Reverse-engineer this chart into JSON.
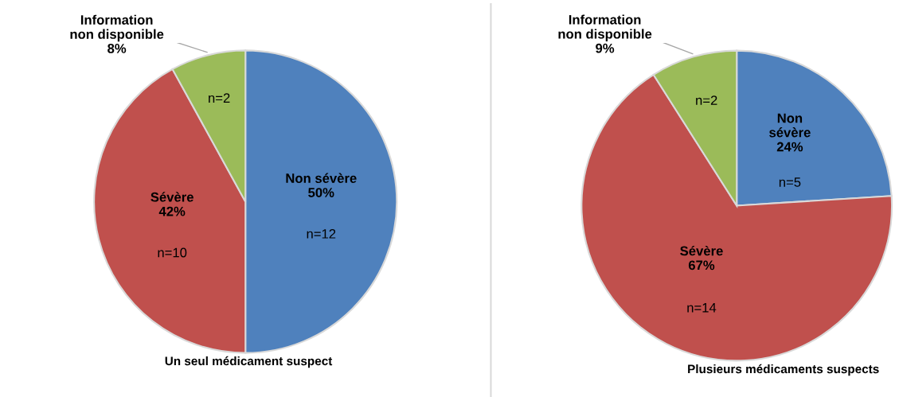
{
  "chart_data": [
    {
      "type": "pie",
      "title": "Un seul médicament suspect",
      "categories": [
        "Non sévère",
        "Sévère",
        "Information\nnon disponible"
      ],
      "values": [
        50,
        42,
        8
      ],
      "colors": [
        "#4f81bd",
        "#c0504d",
        "#9bbb59"
      ],
      "value_labels": [
        "50%",
        "42%",
        "8%"
      ],
      "annotations": [
        {
          "text": "n=12",
          "x": "Non sévère"
        },
        {
          "text": "n=10",
          "x": "Sévère"
        },
        {
          "text": "n=2",
          "x": "Information\nnon disponible"
        }
      ],
      "legend": false
    },
    {
      "type": "pie",
      "title": "Plusieurs médicaments suspects",
      "categories": [
        "Non\nsévère",
        "Sévère",
        "Information\nnon disponible"
      ],
      "values": [
        24,
        67,
        9
      ],
      "colors": [
        "#4f81bd",
        "#c0504d",
        "#9bbb59"
      ],
      "value_labels": [
        "24%",
        "67%",
        "9%"
      ],
      "annotations": [
        {
          "text": "n=5",
          "x": "Non\nsévère"
        },
        {
          "text": "n=14",
          "x": "Sévère"
        },
        {
          "text": "n=2",
          "x": "Information\nnon disponible"
        }
      ],
      "legend": false
    }
  ]
}
